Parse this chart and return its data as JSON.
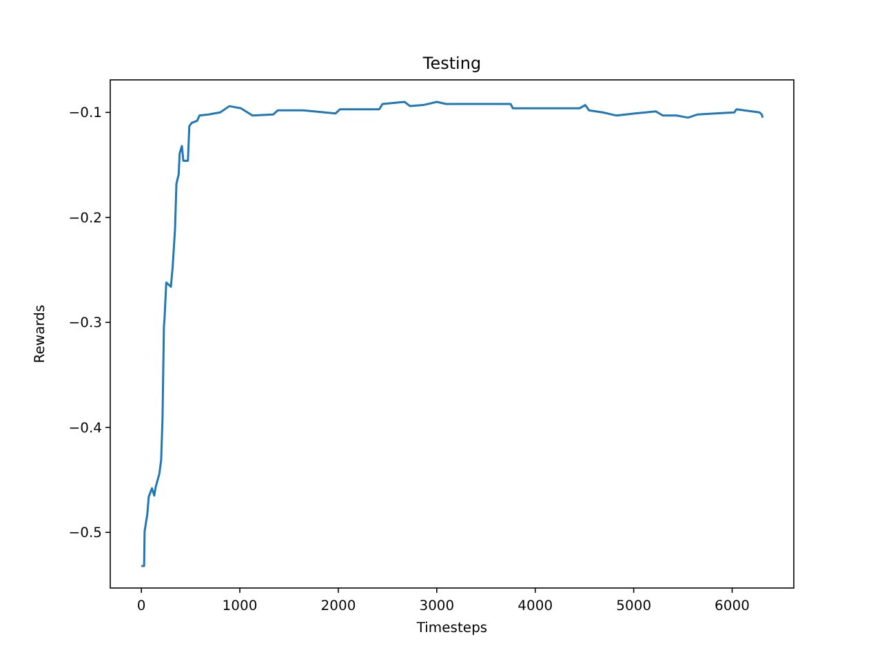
{
  "chart_data": {
    "type": "line",
    "title": "Testing",
    "xlabel": "Timesteps",
    "ylabel": "Rewards",
    "xlim": [
      -316,
      6626
    ],
    "ylim": [
      -0.553,
      -0.069
    ],
    "xticks": [
      0,
      1000,
      2000,
      3000,
      4000,
      5000,
      6000
    ],
    "yticks": [
      {
        "value": -0.5,
        "label": "−0.5"
      },
      {
        "value": -0.4,
        "label": "−0.4"
      },
      {
        "value": -0.3,
        "label": "−0.3"
      },
      {
        "value": -0.2,
        "label": "−0.2"
      },
      {
        "value": -0.1,
        "label": "−0.1"
      }
    ],
    "grid": false,
    "series": [
      {
        "color": "#1f77b4",
        "x": [
          0,
          28,
          33,
          60,
          75,
          108,
          131,
          145,
          183,
          201,
          215,
          229,
          235,
          253,
          300,
          318,
          342,
          356,
          379,
          389,
          412,
          426,
          473,
          487,
          511,
          567,
          590,
          683,
          800,
          894,
          1011,
          1128,
          1339,
          1386,
          1643,
          1971,
          2018,
          2416,
          2449,
          2673,
          2729,
          2861,
          3001,
          3094,
          3750,
          3773,
          4452,
          4508,
          4546,
          4686,
          4827,
          5014,
          5225,
          5295,
          5435,
          5552,
          5646,
          6021,
          6044,
          6278,
          6301,
          6310
        ],
        "values": [
          -0.532,
          -0.532,
          -0.499,
          -0.483,
          -0.466,
          -0.458,
          -0.465,
          -0.457,
          -0.444,
          -0.431,
          -0.391,
          -0.304,
          -0.297,
          -0.262,
          -0.266,
          -0.247,
          -0.211,
          -0.168,
          -0.159,
          -0.139,
          -0.132,
          -0.146,
          -0.146,
          -0.113,
          -0.11,
          -0.108,
          -0.103,
          -0.102,
          -0.1,
          -0.094,
          -0.096,
          -0.103,
          -0.102,
          -0.098,
          -0.098,
          -0.101,
          -0.097,
          -0.097,
          -0.092,
          -0.09,
          -0.094,
          -0.093,
          -0.09,
          -0.092,
          -0.092,
          -0.096,
          -0.096,
          -0.093,
          -0.098,
          -0.1,
          -0.103,
          -0.101,
          -0.099,
          -0.103,
          -0.103,
          -0.105,
          -0.102,
          -0.1,
          -0.097,
          -0.1,
          -0.102,
          -0.105
        ]
      }
    ]
  }
}
